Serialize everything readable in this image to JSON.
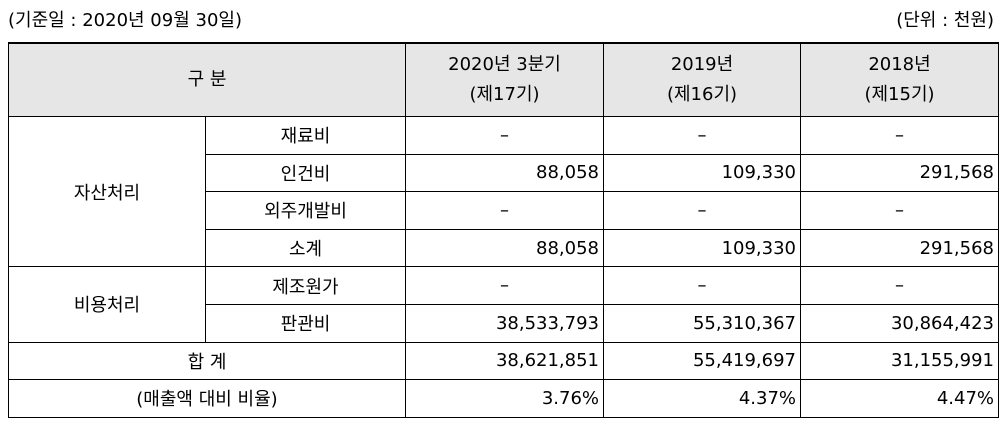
{
  "header": {
    "date": "(기준일 : 2020년 09월 30일)",
    "unit": "(단위 : 천원)"
  },
  "table": {
    "corner": "구 분",
    "columns": [
      [
        "2020년 3분기",
        "(제17기)"
      ],
      [
        "2019년",
        "(제16기)"
      ],
      [
        "2018년",
        "(제15기)"
      ]
    ],
    "groups": [
      {
        "label": "자산처리",
        "rows": [
          {
            "label": "재료비",
            "values": [
              "–",
              "–",
              "–"
            ]
          },
          {
            "label": "인건비",
            "values": [
              "88,058",
              "109,330",
              "291,568"
            ]
          },
          {
            "label": "외주개발비",
            "values": [
              "–",
              "–",
              "–"
            ]
          },
          {
            "label": "소계",
            "values": [
              "88,058",
              "109,330",
              "291,568"
            ]
          }
        ]
      },
      {
        "label": "비용처리",
        "rows": [
          {
            "label": "제조원가",
            "values": [
              "–",
              "–",
              "–"
            ]
          },
          {
            "label": "판관비",
            "values": [
              "38,533,793",
              "55,310,367",
              "30,864,423"
            ]
          }
        ]
      }
    ],
    "total": {
      "label": "합 계",
      "values": [
        "38,621,851",
        "55,419,697",
        "31,155,991"
      ]
    },
    "ratio": {
      "label": "(매출액 대비 비율)",
      "values": [
        "3.76%",
        "4.37%",
        "4.47%"
      ]
    }
  }
}
